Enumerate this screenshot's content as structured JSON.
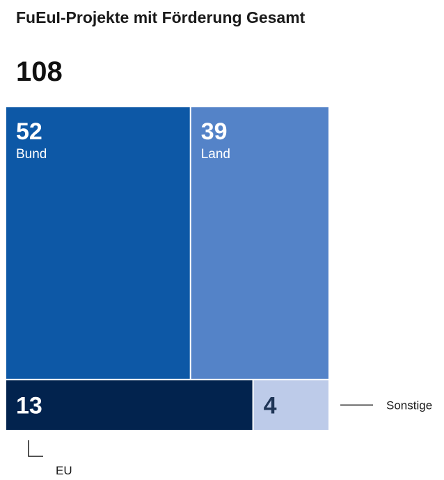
{
  "header": {
    "title": "FuEuI-Projekte mit Förderung Gesamt",
    "total": "108"
  },
  "colors": {
    "bund": "#0d58a6",
    "land": "#5483c8",
    "eu": "#02234e",
    "sonstige": "#bdcbe9",
    "dark_text": "#1f3556",
    "light_text": "#ffffff",
    "leader_line": "#1a1a1a"
  },
  "chart_data": {
    "type": "treemap",
    "title": "FuEuI-Projekte mit Förderung Gesamt",
    "total": 108,
    "items": [
      {
        "label": "Bund",
        "value": 52
      },
      {
        "label": "Land",
        "value": 39
      },
      {
        "label": "EU",
        "value": 13
      },
      {
        "label": "Sonstige",
        "value": 4
      }
    ]
  }
}
